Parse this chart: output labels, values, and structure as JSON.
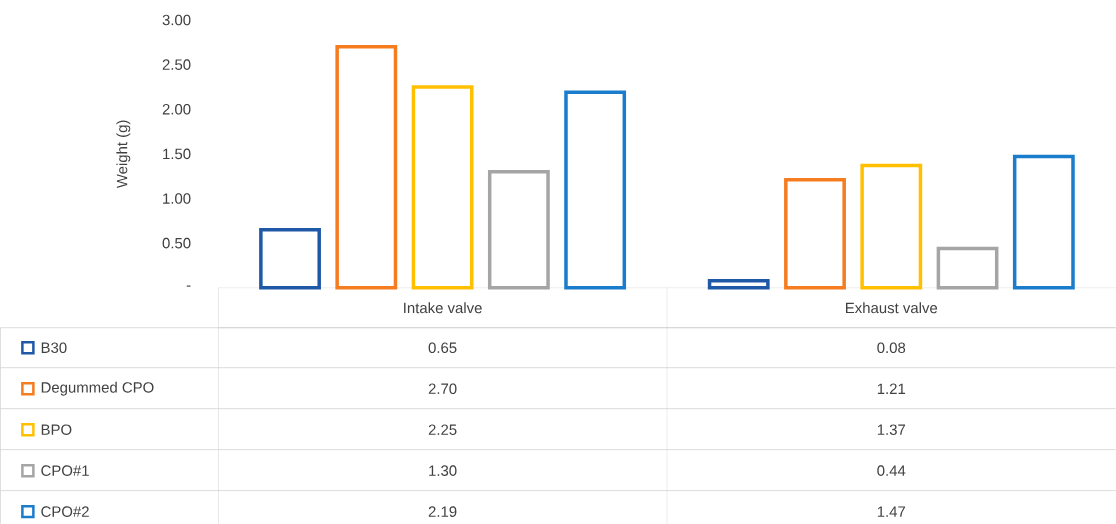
{
  "chart_data": {
    "type": "bar",
    "ylabel": "Weight (g)",
    "categories": [
      "Intake valve",
      "Exhaust valve"
    ],
    "series": [
      {
        "name": "B30",
        "color": "#2058a8",
        "values": [
          0.65,
          0.08
        ],
        "value_labels": [
          "0.65",
          "0.08"
        ]
      },
      {
        "name": "Degummed CPO",
        "color": "#f57c1f",
        "values": [
          2.7,
          1.21
        ],
        "value_labels": [
          "2.70",
          "1.21"
        ]
      },
      {
        "name": "BPO",
        "color": "#ffc000",
        "values": [
          2.25,
          1.37
        ],
        "value_labels": [
          "2.25",
          "1.37"
        ]
      },
      {
        "name": "CPO#1",
        "color": "#a5a5a5",
        "values": [
          1.3,
          0.44
        ],
        "value_labels": [
          "1.30",
          "0.44"
        ]
      },
      {
        "name": "CPO#2",
        "color": "#1a7ccc",
        "values": [
          2.19,
          1.47
        ],
        "value_labels": [
          "2.19",
          "1.47"
        ]
      }
    ],
    "ylim": [
      0,
      3
    ],
    "yticks": [
      {
        "value": 0,
        "label": "-"
      },
      {
        "value": 0.5,
        "label": "0.50"
      },
      {
        "value": 1,
        "label": "1.00"
      },
      {
        "value": 1.5,
        "label": "1.50"
      },
      {
        "value": 2,
        "label": "2.00"
      },
      {
        "value": 2.5,
        "label": "2.50"
      },
      {
        "value": 3,
        "label": "3.00"
      }
    ],
    "legend": "bottom left",
    "grid": false
  }
}
